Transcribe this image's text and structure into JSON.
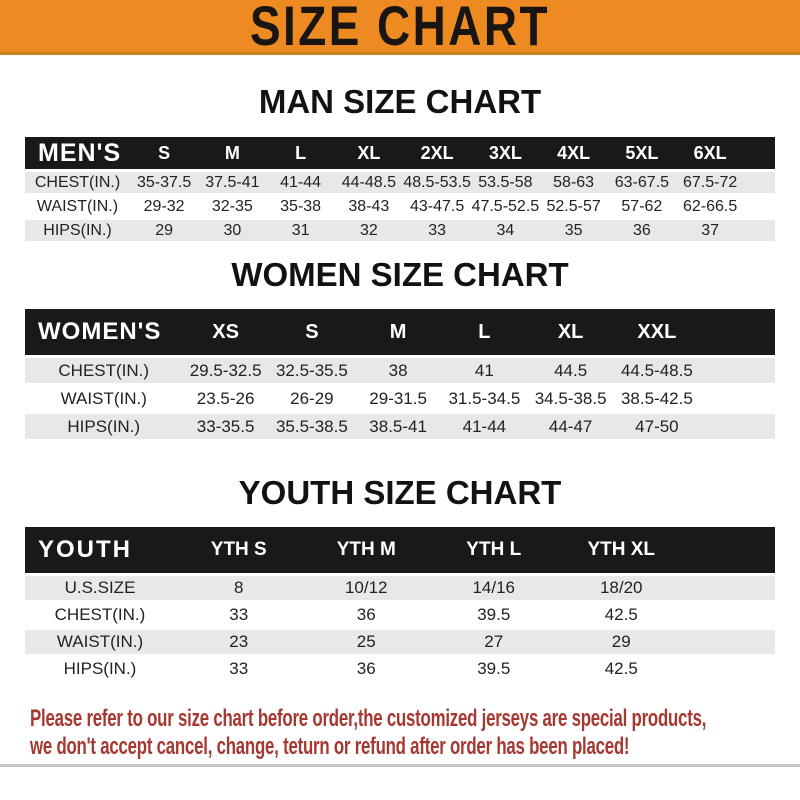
{
  "banner": {
    "title": "SIZE CHART"
  },
  "sections": [
    {
      "id": "men",
      "heading": "MAN SIZE CHART",
      "label": "MEN'S",
      "columns": [
        "S",
        "M",
        "L",
        "XL",
        "2XL",
        "3XL",
        "4XL",
        "5XL",
        "6XL"
      ],
      "rows": [
        {
          "label": "CHEST(IN.)",
          "values": [
            "35-37.5",
            "37.5-41",
            "41-44",
            "44-48.5",
            "48.5-53.5",
            "53.5-58",
            "58-63",
            "63-67.5",
            "67.5-72"
          ]
        },
        {
          "label": "WAIST(IN.)",
          "values": [
            "29-32",
            "32-35",
            "35-38",
            "38-43",
            "43-47.5",
            "47.5-52.5",
            "52.5-57",
            "57-62",
            "62-66.5"
          ]
        },
        {
          "label": "HIPS(IN.)",
          "values": [
            "29",
            "30",
            "31",
            "32",
            "33",
            "34",
            "35",
            "36",
            "37"
          ]
        }
      ]
    },
    {
      "id": "women",
      "heading": "WOMEN SIZE CHART",
      "label": "WOMEN'S",
      "columns": [
        "XS",
        "S",
        "M",
        "L",
        "XL",
        "XXL"
      ],
      "rows": [
        {
          "label": "CHEST(IN.)",
          "values": [
            "29.5-32.5",
            "32.5-35.5",
            "38",
            "41",
            "44.5",
            "44.5-48.5"
          ]
        },
        {
          "label": "WAIST(IN.)",
          "values": [
            "23.5-26",
            "26-29",
            "29-31.5",
            "31.5-34.5",
            "34.5-38.5",
            "38.5-42.5"
          ]
        },
        {
          "label": "HIPS(IN.)",
          "values": [
            "33-35.5",
            "35.5-38.5",
            "38.5-41",
            "41-44",
            "44-47",
            "47-50"
          ]
        }
      ]
    },
    {
      "id": "youth",
      "heading": "YOUTH SIZE CHART",
      "label": "YOUTH",
      "columns": [
        "YTH S",
        "YTH M",
        "YTH L",
        "YTH XL"
      ],
      "rows": [
        {
          "label": "U.S.SIZE",
          "values": [
            "8",
            "10/12",
            "14/16",
            "18/20"
          ]
        },
        {
          "label": "CHEST(IN.)",
          "values": [
            "33",
            "36",
            "39.5",
            "42.5"
          ]
        },
        {
          "label": "WAIST(IN.)",
          "values": [
            "23",
            "25",
            "27",
            "29"
          ]
        },
        {
          "label": "HIPS(IN.)",
          "values": [
            "33",
            "36",
            "39.5",
            "42.5"
          ]
        }
      ]
    }
  ],
  "footer": {
    "line1": "Please refer to our size chart before order,the customized jerseys are special products,",
    "line2": "we don't accept cancel, change, teturn or refund after order has been placed!"
  },
  "colors": {
    "banner_orange": "#ED8A21",
    "header_bar_black": "#191919",
    "row_gray": "#E8E8E8",
    "disclaimer_red": "#A63832"
  }
}
